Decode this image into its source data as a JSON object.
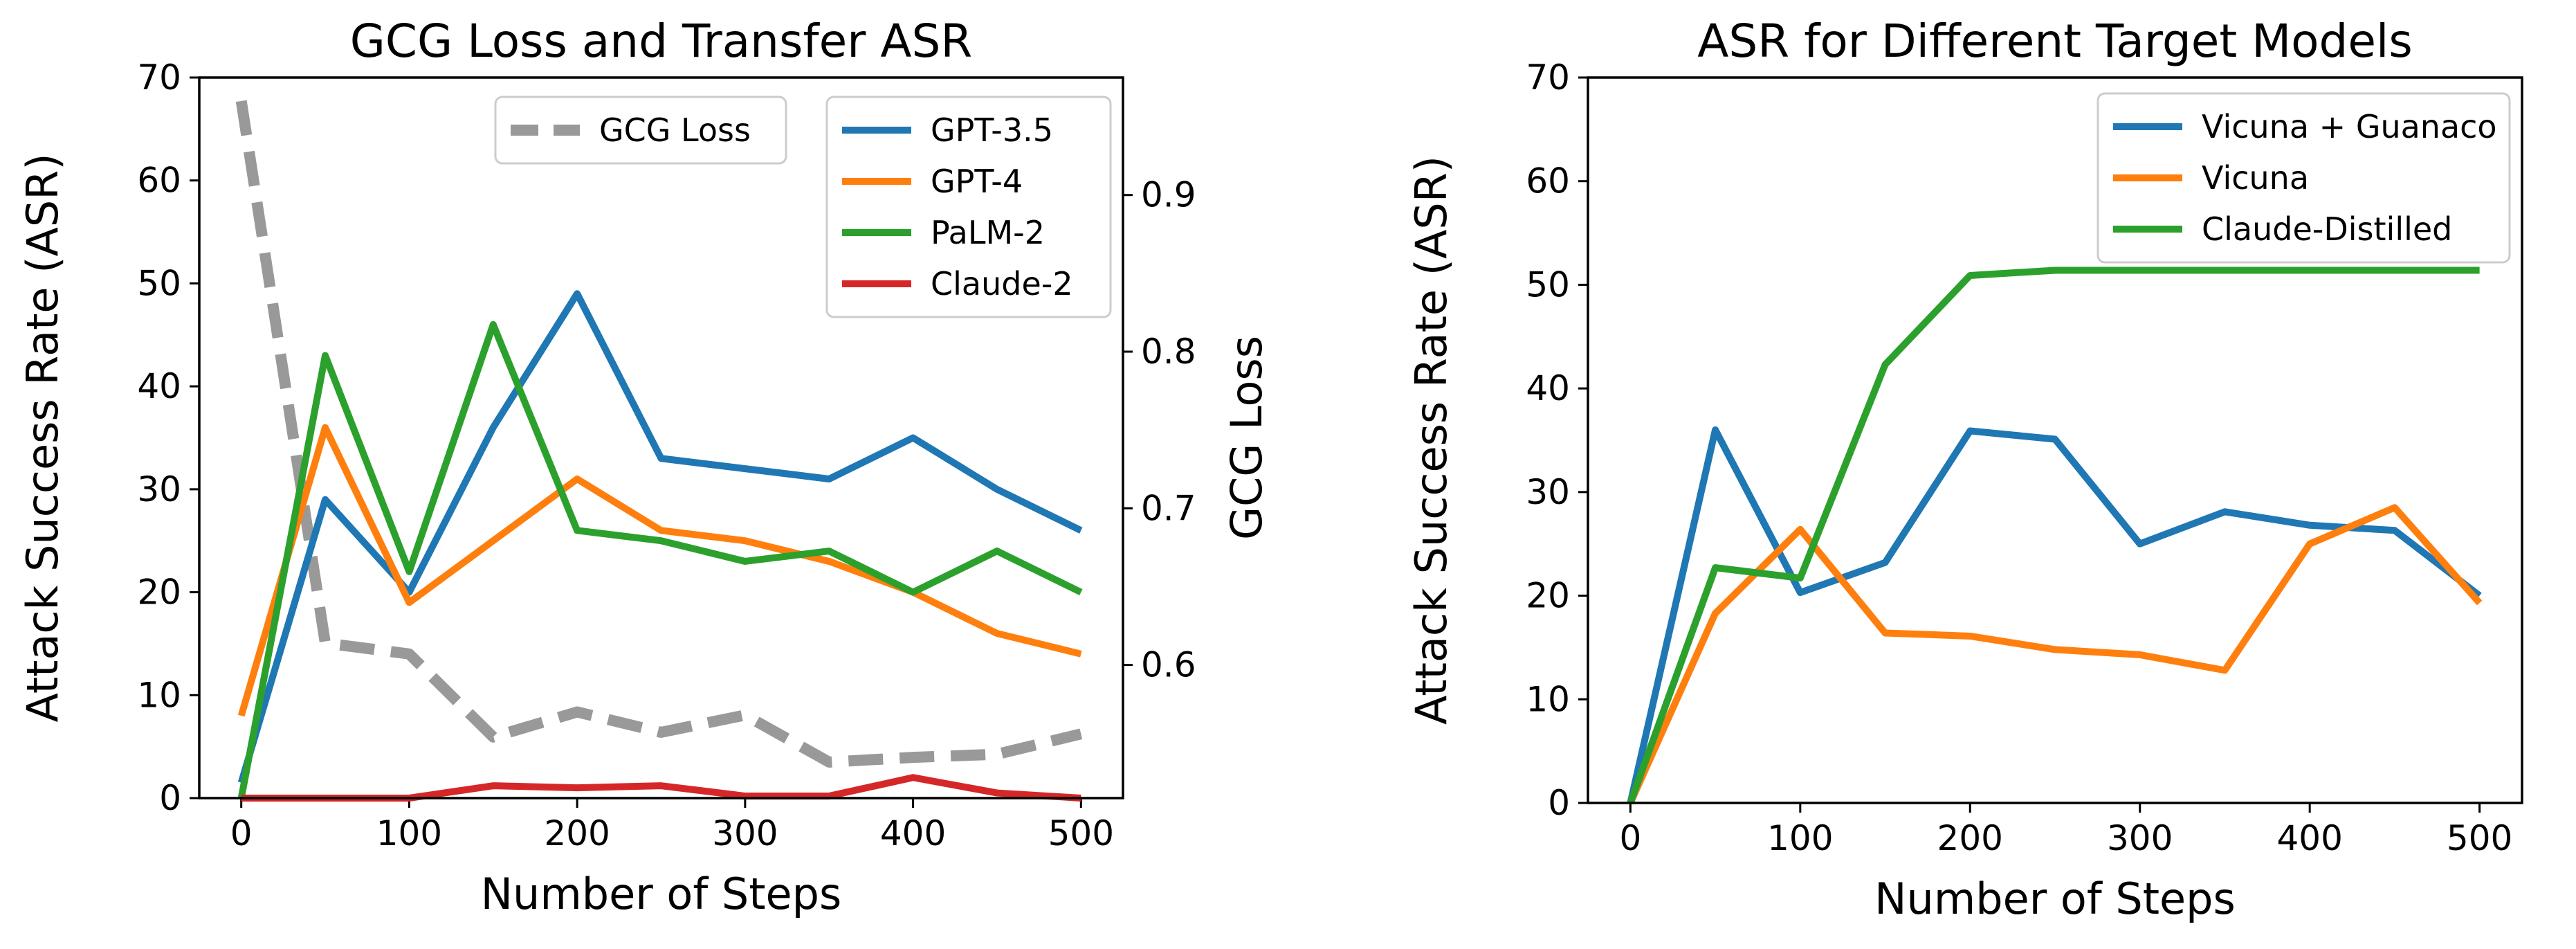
{
  "charts": [
    {
      "type": "line",
      "title": "GCG Loss and Transfer ASR",
      "xlabel": "Number of Steps",
      "ylabel": "Attack Success Rate (ASR)",
      "y2label": "GCG Loss",
      "xlim": [
        -25,
        525
      ],
      "ylim": [
        0,
        70
      ],
      "y2lim": [
        0.515,
        0.975
      ],
      "xticks": [
        0,
        100,
        200,
        300,
        400,
        500
      ],
      "yticks": [
        0,
        10,
        20,
        30,
        40,
        50,
        60,
        70
      ],
      "y2ticks": [
        0.6,
        0.7,
        0.8,
        0.9
      ],
      "grid": false,
      "x": [
        0,
        50,
        100,
        150,
        200,
        250,
        300,
        350,
        400,
        450,
        500
      ],
      "series": [
        {
          "name": "GPT-3.5",
          "color": "#1f77b4",
          "values": [
            1.5,
            29,
            20,
            36,
            49,
            33,
            32,
            31,
            35,
            30,
            26
          ]
        },
        {
          "name": "GPT-4",
          "color": "#ff7f0e",
          "values": [
            8,
            36,
            19,
            25,
            31,
            26,
            25,
            23,
            20,
            16,
            14
          ]
        },
        {
          "name": "PaLM-2",
          "color": "#2ca02c",
          "values": [
            0,
            43,
            22,
            46,
            26,
            25,
            23,
            24,
            20,
            24,
            20
          ]
        },
        {
          "name": "Claude-2",
          "color": "#d62728",
          "values": [
            0,
            0,
            0,
            1.2,
            1,
            1.2,
            0.2,
            0.2,
            2,
            0.5,
            0
          ]
        }
      ],
      "loss_series": {
        "name": "GCG Loss",
        "color": "#999999",
        "values": [
          0.96,
          0.614,
          0.607,
          0.554,
          0.57,
          0.557,
          0.568,
          0.538,
          0.541,
          0.543,
          0.556
        ]
      },
      "legends": {
        "loss": "upper center",
        "asr": "upper right"
      }
    },
    {
      "type": "line",
      "title": "ASR for Different Target Models",
      "xlabel": "Number of Steps",
      "ylabel": "Attack Success Rate (ASR)",
      "xlim": [
        -25,
        525
      ],
      "ylim": [
        0,
        70
      ],
      "xticks": [
        0,
        100,
        200,
        300,
        400,
        500
      ],
      "yticks": [
        0,
        10,
        20,
        30,
        40,
        50,
        60,
        70
      ],
      "grid": false,
      "x": [
        0,
        50,
        100,
        150,
        200,
        250,
        300,
        350,
        400,
        450,
        500
      ],
      "series": [
        {
          "name": "Vicuna + Guanaco",
          "color": "#1f77b4",
          "values": [
            0,
            36,
            20.3,
            23.2,
            35.9,
            35.1,
            25,
            28.1,
            26.8,
            26.3,
            20
          ]
        },
        {
          "name": "Vicuna",
          "color": "#ff7f0e",
          "values": [
            0,
            18.3,
            26.4,
            16.4,
            16.1,
            14.8,
            14.3,
            12.8,
            25,
            28.5,
            19.3
          ]
        },
        {
          "name": "Claude-Distilled",
          "color": "#2ca02c",
          "values": [
            0,
            22.7,
            21.7,
            42.3,
            50.9,
            51.4,
            51.4,
            51.4,
            51.4,
            51.4,
            51.4
          ]
        }
      ],
      "legends": {
        "asr": "upper right"
      }
    }
  ]
}
